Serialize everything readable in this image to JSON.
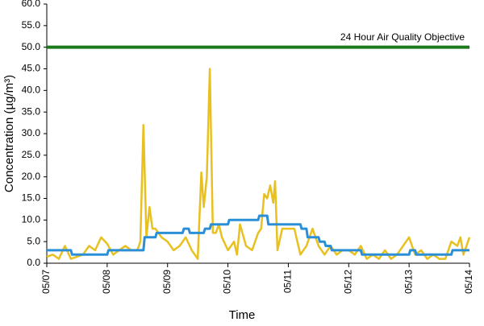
{
  "chart_data": {
    "type": "line",
    "x_label": "Time",
    "y_label": "Concentration (µg/m³)",
    "xlim": [
      0,
      7
    ],
    "xticks": [
      {
        "value": 0,
        "label": "05/07"
      },
      {
        "value": 1,
        "label": "05/08"
      },
      {
        "value": 2,
        "label": "05/09"
      },
      {
        "value": 3,
        "label": "05/10"
      },
      {
        "value": 4,
        "label": "05/11"
      },
      {
        "value": 5,
        "label": "05/12"
      },
      {
        "value": 6,
        "label": "05/13"
      },
      {
        "value": 7,
        "label": "05/14"
      }
    ],
    "ylim": [
      0,
      60
    ],
    "yticks": [
      {
        "value": 0,
        "label": "0.0"
      },
      {
        "value": 5,
        "label": "5.0"
      },
      {
        "value": 10,
        "label": "10.0"
      },
      {
        "value": 15,
        "label": "15.0"
      },
      {
        "value": 20,
        "label": "20.0"
      },
      {
        "value": 25,
        "label": "25.0"
      },
      {
        "value": 30,
        "label": "30.0"
      },
      {
        "value": 35,
        "label": "35.0"
      },
      {
        "value": 40,
        "label": "40.0"
      },
      {
        "value": 45,
        "label": "45.0"
      },
      {
        "value": 50,
        "label": "50.0"
      },
      {
        "value": 55,
        "label": "55.0"
      },
      {
        "value": 60,
        "label": "60.0"
      }
    ],
    "grid": false,
    "objective": {
      "value": 50,
      "label": "24 Hour Air Quality Objective",
      "color": "#1a7a1a"
    },
    "series": [
      {
        "color": "#e8c020",
        "x": [
          0,
          0.1,
          0.2,
          0.3,
          0.4,
          0.5,
          0.6,
          0.7,
          0.8,
          0.9,
          1.0,
          1.1,
          1.2,
          1.3,
          1.4,
          1.5,
          1.55,
          1.6,
          1.65,
          1.7,
          1.75,
          1.8,
          1.9,
          2.0,
          2.1,
          2.2,
          2.3,
          2.4,
          2.5,
          2.56,
          2.6,
          2.65,
          2.7,
          2.75,
          2.8,
          2.85,
          2.9,
          3.0,
          3.1,
          3.15,
          3.2,
          3.3,
          3.4,
          3.5,
          3.55,
          3.6,
          3.65,
          3.7,
          3.75,
          3.78,
          3.82,
          3.9,
          4.0,
          4.1,
          4.2,
          4.3,
          4.4,
          4.5,
          4.6,
          4.7,
          4.8,
          4.9,
          5.0,
          5.1,
          5.2,
          5.3,
          5.4,
          5.5,
          5.6,
          5.7,
          5.8,
          5.9,
          6.0,
          6.1,
          6.2,
          6.3,
          6.4,
          6.5,
          6.6,
          6.7,
          6.8,
          6.85,
          6.9,
          7.0
        ],
        "values": [
          1.5,
          2,
          1,
          4,
          1,
          1.5,
          2,
          4,
          3,
          6,
          4.5,
          2,
          3,
          4,
          3,
          3,
          5,
          32,
          6,
          13,
          8,
          8,
          6,
          5,
          3,
          4,
          6,
          3,
          1,
          21,
          13,
          20,
          45,
          7,
          7,
          9,
          6,
          3,
          5,
          2,
          9,
          4,
          3,
          7,
          8,
          16,
          15,
          18,
          14,
          19,
          3,
          8,
          8,
          8,
          2,
          4,
          8,
          4,
          2,
          4,
          2,
          3,
          3,
          2,
          4,
          1,
          2,
          1,
          3,
          1,
          2,
          4,
          6,
          2,
          3,
          1,
          2,
          1,
          1,
          5,
          4,
          6,
          2,
          6
        ]
      },
      {
        "color": "#2b8fd8",
        "x": [
          0,
          0.4,
          0.42,
          1.0,
          1.02,
          1.6,
          1.62,
          1.8,
          1.82,
          2.25,
          2.27,
          2.35,
          2.37,
          2.6,
          2.62,
          2.7,
          2.72,
          3.0,
          3.02,
          3.5,
          3.52,
          3.65,
          3.67,
          4.2,
          4.22,
          4.3,
          4.32,
          4.5,
          4.52,
          4.6,
          4.62,
          4.7,
          4.72,
          5.2,
          5.22,
          6.0,
          6.02,
          6.1,
          6.12,
          6.7,
          6.72,
          7.0
        ],
        "values": [
          3,
          3,
          2,
          2,
          3,
          3,
          6,
          6,
          7,
          7,
          8,
          8,
          7,
          7,
          8,
          8,
          9,
          9,
          10,
          10,
          11,
          11,
          9,
          9,
          8,
          8,
          6,
          6,
          5,
          5,
          4,
          4,
          3,
          3,
          2,
          2,
          3,
          3,
          2,
          2,
          3,
          3
        ]
      }
    ]
  }
}
